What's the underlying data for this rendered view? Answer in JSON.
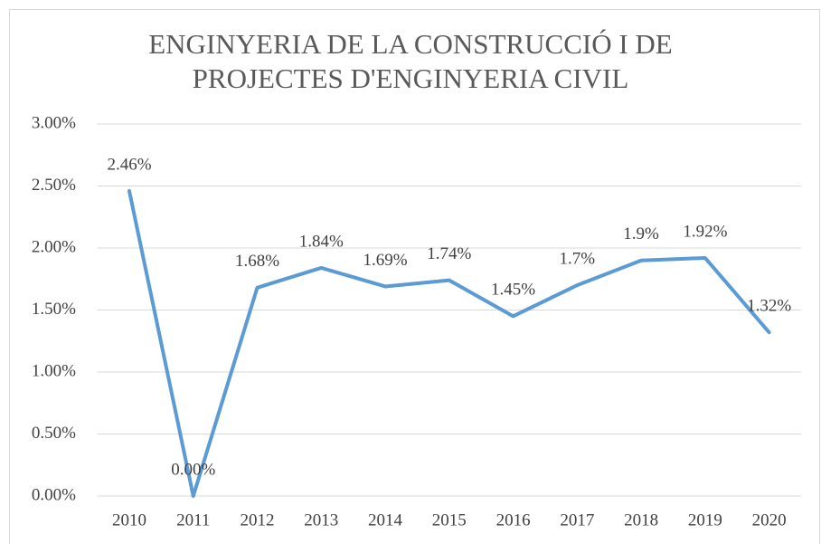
{
  "chart_data": {
    "type": "line",
    "title": [
      "ENGINYERIA DE LA CONSTRUCCIÓ I DE",
      "PROJECTES  D'ENGINYERIA CIVIL"
    ],
    "categories": [
      "2010",
      "2011",
      "2012",
      "2013",
      "2014",
      "2015",
      "2016",
      "2017",
      "2018",
      "2019",
      "2020"
    ],
    "series": [
      {
        "color": "#5b9bd5",
        "values": [
          2.46,
          0,
          1.68,
          1.84,
          1.69,
          1.74,
          1.45,
          1.7,
          1.9,
          1.92,
          1.32
        ],
        "value_labels": [
          "2.46%",
          "0.00%",
          "1.68%",
          "1.84%",
          "1.69%",
          "1.74%",
          "1.45%",
          "1.7%",
          "1.9%",
          "1.92%",
          "1.32%"
        ]
      }
    ],
    "ylim": [
      0,
      3
    ],
    "yticks": [
      {
        "value": 0,
        "label": "0.00%"
      },
      {
        "value": 0.5,
        "label": "0.50%"
      },
      {
        "value": 1,
        "label": "1.00%"
      },
      {
        "value": 1.5,
        "label": "1.50%"
      },
      {
        "value": 2,
        "label": "2.00%"
      },
      {
        "value": 2.5,
        "label": "2.50%"
      },
      {
        "value": 3,
        "label": "3.00%"
      }
    ],
    "grid": true
  }
}
